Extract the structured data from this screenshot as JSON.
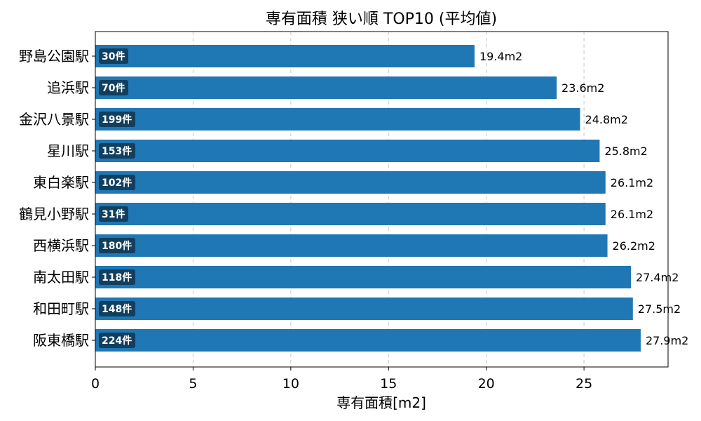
{
  "chart_data": {
    "type": "bar",
    "orientation": "horizontal",
    "title": "専有面積 狭い順 TOP10 (平均値)",
    "xlabel": "専有面積[m2]",
    "ylabel": "",
    "categories": [
      "野島公園駅",
      "追浜駅",
      "金沢八景駅",
      "星川駅",
      "東白楽駅",
      "鶴見小野駅",
      "西横浜駅",
      "南太田駅",
      "和田町駅",
      "阪東橋駅"
    ],
    "values": [
      19.4,
      23.6,
      24.8,
      25.8,
      26.1,
      26.1,
      26.2,
      27.4,
      27.5,
      27.9
    ],
    "value_labels": [
      "19.4m2",
      "23.6m2",
      "24.8m2",
      "25.8m2",
      "26.1m2",
      "26.1m2",
      "26.2m2",
      "27.4m2",
      "27.5m2",
      "27.9m2"
    ],
    "counts": [
      "30件",
      "70件",
      "199件",
      "153件",
      "102件",
      "31件",
      "180件",
      "118件",
      "148件",
      "224件"
    ],
    "xlim": [
      0,
      29.3
    ],
    "xticks": [
      0,
      5,
      10,
      15,
      20,
      25
    ],
    "grid": "vertical dashed",
    "colors": {
      "bar": "#1f77b4",
      "count_badge": "#123f5e",
      "grid": "#c8c8c8"
    }
  }
}
